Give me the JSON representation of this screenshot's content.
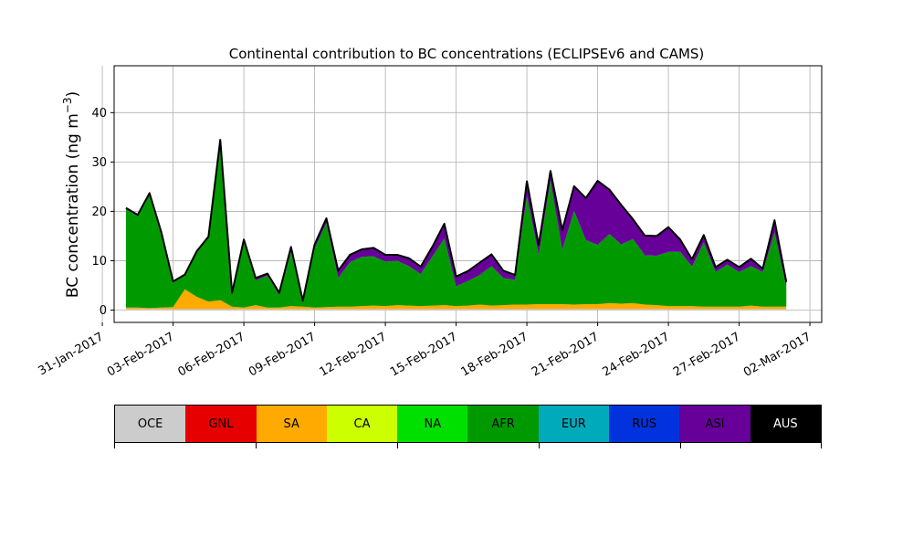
{
  "chart_data": {
    "type": "area",
    "title": "Continental contribution to BC concentrations (ECLIPSEv6 and CAMS)",
    "xlabel": "",
    "ylabel": "BC concentration (ng m⁻³)",
    "ylabel_parts": {
      "main": "BC concentration (ng m",
      "exp": "−3",
      "close": ")"
    },
    "stacked": true,
    "grid": true,
    "xlim": [
      "2017-01-31T12:00",
      "2017-03-02T12:00"
    ],
    "ylim": [
      -2.5,
      49.5
    ],
    "yticks": [
      0,
      10,
      20,
      30,
      40
    ],
    "xticks": [
      "2017-01-31",
      "2017-02-03",
      "2017-02-06",
      "2017-02-09",
      "2017-02-12",
      "2017-02-15",
      "2017-02-18",
      "2017-02-21",
      "2017-02-24",
      "2017-02-27",
      "2017-03-02"
    ],
    "xtick_labels": [
      "31-Jan-2017",
      "03-Feb-2017",
      "06-Feb-2017",
      "09-Feb-2017",
      "12-Feb-2017",
      "15-Feb-2017",
      "18-Feb-2017",
      "21-Feb-2017",
      "24-Feb-2017",
      "27-Feb-2017",
      "02-Mar-2017"
    ],
    "legend_entries": [
      {
        "name": "OCE",
        "color": "#cccccc"
      },
      {
        "name": "GNL",
        "color": "#e60000"
      },
      {
        "name": "SA",
        "color": "#ffaa00"
      },
      {
        "name": "CA",
        "color": "#ccff00"
      },
      {
        "name": "NA",
        "color": "#00e000"
      },
      {
        "name": "AFR",
        "color": "#009a00"
      },
      {
        "name": "EUR",
        "color": "#00aabb"
      },
      {
        "name": "RUS",
        "color": "#0033dd"
      },
      {
        "name": "ASI",
        "color": "#660099"
      },
      {
        "name": "AUS",
        "color": "#000000"
      }
    ],
    "legend_placement": "bottom (separate colorbar)",
    "x": [
      "2017-02-01",
      "2017-02-01T12:00",
      "2017-02-02",
      "2017-02-02T12:00",
      "2017-02-03",
      "2017-02-03T12:00",
      "2017-02-04",
      "2017-02-04T12:00",
      "2017-02-05",
      "2017-02-05T12:00",
      "2017-02-06",
      "2017-02-06T12:00",
      "2017-02-07",
      "2017-02-07T12:00",
      "2017-02-08",
      "2017-02-08T12:00",
      "2017-02-09",
      "2017-02-09T12:00",
      "2017-02-10",
      "2017-02-10T12:00",
      "2017-02-11",
      "2017-02-11T12:00",
      "2017-02-12",
      "2017-02-12T12:00",
      "2017-02-13",
      "2017-02-13T12:00",
      "2017-02-14",
      "2017-02-14T12:00",
      "2017-02-15",
      "2017-02-15T12:00",
      "2017-02-16",
      "2017-02-16T12:00",
      "2017-02-17",
      "2017-02-17T12:00",
      "2017-02-18",
      "2017-02-18T12:00",
      "2017-02-19",
      "2017-02-19T12:00",
      "2017-02-20",
      "2017-02-20T12:00",
      "2017-02-21",
      "2017-02-21T12:00",
      "2017-02-22",
      "2017-02-22T12:00",
      "2017-02-23",
      "2017-02-23T12:00",
      "2017-02-24",
      "2017-02-24T12:00",
      "2017-02-25",
      "2017-02-25T12:00",
      "2017-02-26",
      "2017-02-26T12:00",
      "2017-02-27",
      "2017-02-27T12:00",
      "2017-02-28",
      "2017-02-28T12:00",
      "2017-03-01"
    ],
    "series": [
      {
        "name": "OCE",
        "color": "#cccccc",
        "values": [
          0.2,
          0.2,
          0.2,
          0.2,
          0.2,
          0.2,
          0.2,
          0.2,
          0.2,
          0.2,
          0.2,
          0.2,
          0.2,
          0.2,
          0.2,
          0.2,
          0.2,
          0.2,
          0.2,
          0.2,
          0.2,
          0.2,
          0.2,
          0.2,
          0.2,
          0.2,
          0.2,
          0.2,
          0.2,
          0.2,
          0.2,
          0.2,
          0.2,
          0.2,
          0.2,
          0.2,
          0.2,
          0.2,
          0.2,
          0.2,
          0.2,
          0.2,
          0.2,
          0.2,
          0.2,
          0.2,
          0.2,
          0.2,
          0.2,
          0.2,
          0.2,
          0.2,
          0.2,
          0.2,
          0.2,
          0.2,
          0.2
        ]
      },
      {
        "name": "SA",
        "color": "#ffaa00",
        "values": [
          0.3,
          0.3,
          0.2,
          0.3,
          0.4,
          4.0,
          2.5,
          1.5,
          1.8,
          0.5,
          0.3,
          0.8,
          0.3,
          0.3,
          0.6,
          0.5,
          0.3,
          0.4,
          0.5,
          0.5,
          0.6,
          0.7,
          0.6,
          0.8,
          0.7,
          0.6,
          0.7,
          0.8,
          0.6,
          0.7,
          0.9,
          0.7,
          0.8,
          0.9,
          0.9,
          1.0,
          1.0,
          1.0,
          0.9,
          1.0,
          1.0,
          1.2,
          1.1,
          1.2,
          0.9,
          0.8,
          0.6,
          0.6,
          0.6,
          0.5,
          0.5,
          0.5,
          0.5,
          0.7,
          0.5,
          0.5,
          0.5
        ]
      },
      {
        "name": "AFR",
        "color": "#009a00",
        "values": [
          20.0,
          18.5,
          23.0,
          15.0,
          5.0,
          2.8,
          9.0,
          13.0,
          32.0,
          2.5,
          13.5,
          5.0,
          6.5,
          2.5,
          11.0,
          1.0,
          12.0,
          17.0,
          5.8,
          9.0,
          10.0,
          10.0,
          9.0,
          9.0,
          8.0,
          6.5,
          10.0,
          13.5,
          4.0,
          5.0,
          6.0,
          8.0,
          5.5,
          5.0,
          22.0,
          10.0,
          25.0,
          11.0,
          19.0,
          13.0,
          12.0,
          14.0,
          12.0,
          13.0,
          10.0,
          10.0,
          11.0,
          11.0,
          8.0,
          13.0,
          7.0,
          8.5,
          7.0,
          8.0,
          7.0,
          15.0,
          4.0
        ]
      },
      {
        "name": "ASI",
        "color": "#660099",
        "values": [
          0.2,
          0.3,
          0.3,
          0.3,
          0.2,
          0.2,
          0.2,
          0.2,
          0.5,
          0.3,
          0.3,
          0.5,
          0.4,
          0.5,
          1.0,
          0.2,
          0.8,
          1.0,
          1.5,
          1.5,
          1.5,
          1.7,
          1.4,
          1.2,
          1.6,
          1.5,
          2.0,
          3.0,
          2.0,
          2.0,
          2.5,
          2.4,
          1.5,
          1.0,
          3.0,
          2.0,
          2.0,
          4.0,
          5.0,
          8.5,
          13.0,
          9.0,
          8.0,
          4.0,
          4.0,
          4.0,
          5.0,
          2.5,
          1.5,
          1.5,
          1.0,
          1.0,
          1.0,
          1.5,
          0.7,
          2.5,
          1.0
        ]
      }
    ]
  }
}
